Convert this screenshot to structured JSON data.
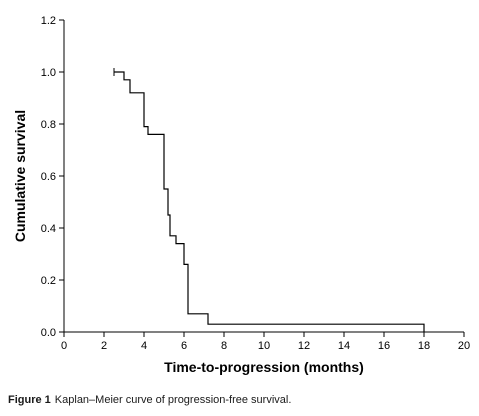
{
  "chart_data": {
    "type": "line",
    "xlabel": "Time-to-progression (months)",
    "ylabel": "Cumulative survival",
    "xlim": [
      0,
      20
    ],
    "ylim": [
      0,
      1.2
    ],
    "xticks": [
      "0",
      "2",
      "4",
      "6",
      "8",
      "10",
      "12",
      "14",
      "16",
      "18",
      "20"
    ],
    "yticks": [
      "0.0",
      "0.2",
      "0.4",
      "0.6",
      "0.8",
      "1.0",
      "1.2"
    ],
    "grid": false,
    "series": [
      {
        "step_points": [
          [
            2.5,
            1.0
          ],
          [
            3.0,
            1.0
          ],
          [
            3.0,
            0.97
          ],
          [
            3.3,
            0.97
          ],
          [
            3.3,
            0.92
          ],
          [
            4.0,
            0.92
          ],
          [
            4.0,
            0.79
          ],
          [
            4.2,
            0.79
          ],
          [
            4.2,
            0.76
          ],
          [
            5.0,
            0.76
          ],
          [
            5.0,
            0.55
          ],
          [
            5.2,
            0.55
          ],
          [
            5.2,
            0.45
          ],
          [
            5.3,
            0.45
          ],
          [
            5.3,
            0.37
          ],
          [
            5.6,
            0.37
          ],
          [
            5.6,
            0.34
          ],
          [
            6.0,
            0.34
          ],
          [
            6.0,
            0.26
          ],
          [
            6.2,
            0.26
          ],
          [
            6.2,
            0.07
          ],
          [
            7.2,
            0.07
          ],
          [
            7.2,
            0.03
          ],
          [
            18.0,
            0.03
          ],
          [
            18.0,
            0.0
          ]
        ],
        "censored": [
          [
            2.5,
            1.0
          ],
          [
            6.2,
            0.1
          ]
        ]
      }
    ]
  },
  "caption": {
    "label": "Figure 1",
    "text": "Kaplan–Meier curve of progression-free survival."
  }
}
